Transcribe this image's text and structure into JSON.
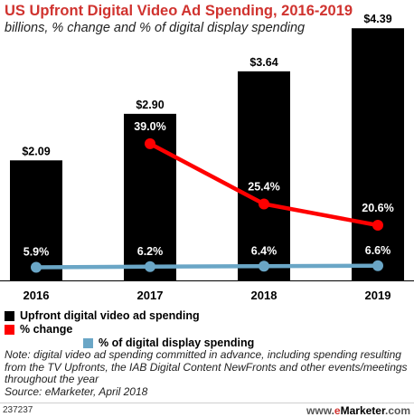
{
  "header": {
    "title": "US Upfront Digital Video Ad Spending, 2016-2019",
    "subtitle": "billions, % change and % of digital display spending"
  },
  "legend": [
    {
      "label": "Upfront digital video ad spending",
      "color": "#000000",
      "shape": "square"
    },
    {
      "label": "% change",
      "color": "#ff0000",
      "shape": "square"
    },
    {
      "label": "% of digital display spending",
      "color": "#6aa6c6",
      "shape": "square"
    }
  ],
  "chart_data": {
    "type": "bar",
    "categories": [
      "2016",
      "2017",
      "2018",
      "2019"
    ],
    "series": [
      {
        "name": "Upfront digital video ad spending",
        "kind": "bar",
        "color": "#000000",
        "values": [
          2.09,
          2.9,
          3.64,
          4.39
        ],
        "labels": [
          "$2.09",
          "$2.90",
          "$3.64",
          "$4.39"
        ]
      },
      {
        "name": "% change",
        "kind": "line",
        "color": "#ff0000",
        "values": [
          null,
          39.0,
          25.4,
          20.6
        ],
        "labels": [
          "",
          "39.0%",
          "25.4%",
          "20.6%"
        ]
      },
      {
        "name": "% of digital display spending",
        "kind": "line",
        "color": "#6aa6c6",
        "values": [
          5.9,
          6.2,
          6.4,
          6.6
        ],
        "labels": [
          "5.9%",
          "6.2%",
          "6.4%",
          "6.6%"
        ]
      }
    ],
    "ylim": [
      0,
      4.6
    ],
    "grid": false,
    "legend_position": "bottom-left"
  },
  "note": {
    "text": "Note: digital video ad spending committed in advance, including spending resulting from the TV Upfronts, the IAB Digital Content NewFronts and other events/meetings throughout the year",
    "source": "Source: eMarketer, April 2018"
  },
  "footer": {
    "chart_id": "237237",
    "brand_site": "www.",
    "brand_e": "e",
    "brand_name": "Marketer",
    "brand_tld": ".com"
  }
}
